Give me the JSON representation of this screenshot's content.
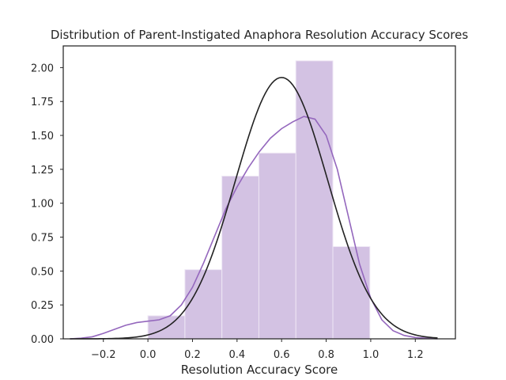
{
  "chart_data": {
    "type": "histogram",
    "title": "Distribution of Parent-Instigated Anaphora Resolution Accuracy Scores",
    "xlabel": "Resolution Accuracy Score",
    "ylabel": "",
    "xlim": [
      -0.38,
      1.38
    ],
    "ylim": [
      0,
      2.16
    ],
    "xticks": [
      "−0.2",
      "0.0",
      "0.2",
      "0.4",
      "0.6",
      "0.8",
      "1.0",
      "1.2"
    ],
    "xtick_values": [
      -0.2,
      0.0,
      0.2,
      0.4,
      0.6,
      0.8,
      1.0,
      1.2
    ],
    "yticks": [
      "0.00",
      "0.25",
      "0.50",
      "0.75",
      "1.00",
      "1.25",
      "1.50",
      "1.75",
      "2.00"
    ],
    "ytick_values": [
      0,
      0.25,
      0.5,
      0.75,
      1.0,
      1.25,
      1.5,
      1.75,
      2.0
    ],
    "grid": false,
    "bins": [
      {
        "x0": 0.0,
        "x1": 0.166,
        "density": 0.17
      },
      {
        "x0": 0.166,
        "x1": 0.332,
        "density": 0.51
      },
      {
        "x0": 0.332,
        "x1": 0.498,
        "density": 1.2
      },
      {
        "x0": 0.498,
        "x1": 0.664,
        "density": 1.37
      },
      {
        "x0": 0.664,
        "x1": 0.83,
        "density": 2.05
      },
      {
        "x0": 0.83,
        "x1": 0.996,
        "density": 0.68
      }
    ],
    "series": [
      {
        "kind": "kde",
        "x": [
          -0.35,
          -0.3,
          -0.25,
          -0.2,
          -0.15,
          -0.1,
          -0.05,
          0.0,
          0.05,
          0.1,
          0.15,
          0.2,
          0.25,
          0.3,
          0.35,
          0.4,
          0.45,
          0.5,
          0.55,
          0.6,
          0.65,
          0.7,
          0.75,
          0.8,
          0.85,
          0.9,
          0.95,
          1.0,
          1.05,
          1.1,
          1.15,
          1.2,
          1.25,
          1.3
        ],
        "y": [
          0.0,
          0.005,
          0.015,
          0.04,
          0.07,
          0.1,
          0.12,
          0.13,
          0.14,
          0.17,
          0.25,
          0.38,
          0.56,
          0.76,
          0.96,
          1.12,
          1.26,
          1.38,
          1.48,
          1.55,
          1.6,
          1.64,
          1.62,
          1.5,
          1.25,
          0.9,
          0.55,
          0.3,
          0.14,
          0.06,
          0.025,
          0.01,
          0.004,
          0.0
        ]
      },
      {
        "kind": "normal-fit",
        "mean": 0.6,
        "std": 0.207,
        "x_range": [
          -0.35,
          1.3
        ]
      }
    ],
    "colors": {
      "bar_fill": "#d3c2e3",
      "bar_edge": "#eee6f4",
      "kde_line": "#9467bd",
      "fit_line": "#222222",
      "axes": "#262626"
    }
  }
}
